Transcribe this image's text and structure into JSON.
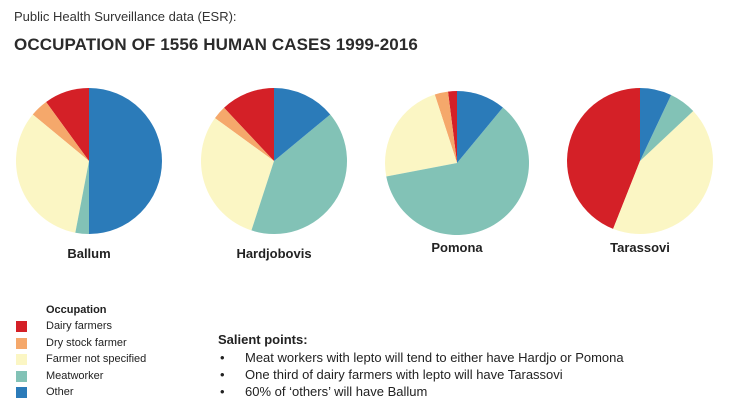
{
  "header": {
    "subtitle": "Public Health Surveillance data (ESR):",
    "title": "OCCUPATION OF 1556 HUMAN CASES 1999-2016"
  },
  "chart_data": {
    "type": "pie",
    "title": "OCCUPATION OF 1556 HUMAN CASES 1999-2016",
    "subtitle": "Public Health Surveillance data (ESR):",
    "categories": [
      "Dairy farmers",
      "Dry stock farmer",
      "Farmer not specified",
      "Meatworker",
      "Other"
    ],
    "colors": [
      "#d42027",
      "#f5a86b",
      "#fbf6c4",
      "#82c2b6",
      "#2b7bb9"
    ],
    "pies": [
      {
        "name": "Ballum",
        "values": [
          10,
          4,
          33,
          3,
          50
        ]
      },
      {
        "name": "Hardjobovis",
        "values": [
          12,
          3,
          30,
          41,
          14
        ]
      },
      {
        "name": "Pomona",
        "values": [
          2,
          3,
          23,
          61,
          11
        ]
      },
      {
        "name": "Tarassovi",
        "values": [
          44,
          0,
          43,
          6,
          7
        ]
      }
    ]
  },
  "legend": {
    "title": "Occupation",
    "items": [
      {
        "label": "Dairy farmers",
        "color": "#d42027"
      },
      {
        "label": "Dry stock farmer",
        "color": "#f5a86b"
      },
      {
        "label": "Farmer not specified",
        "color": "#fbf6c4"
      },
      {
        "label": "Meatworker",
        "color": "#82c2b6"
      },
      {
        "label": "Other",
        "color": "#2b7bb9"
      }
    ]
  },
  "salient": {
    "title": "Salient points:",
    "bullets": [
      "Meat workers with lepto will tend to either have Hardjo or Pomona",
      "One third of dairy farmers with lepto will have Tarassovi",
      "60% of ‘others’ will have Ballum"
    ]
  }
}
